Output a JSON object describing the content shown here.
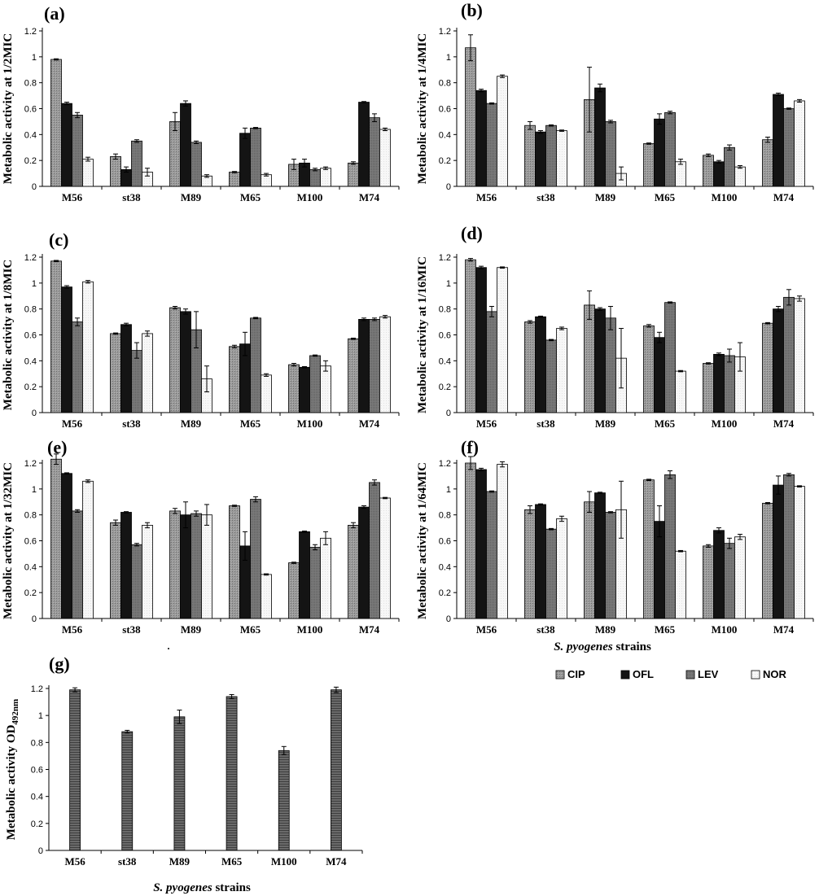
{
  "colors": {
    "CIP": "#8e8e8e",
    "OFL": "#141414",
    "LEV": "#7a7a7a",
    "NOR": "#f7f7f7",
    "single": "#6a6a6a"
  },
  "legend": [
    "CIP",
    "OFL",
    "LEV",
    "NOR"
  ],
  "xaxis_label": {
    "italic": "S. pyogenes",
    "plain": " strains"
  },
  "chart_data": [
    {
      "type": "bar",
      "panel": "(a)",
      "ylabel": "Metabolic activity at 1/2MIC",
      "categories": [
        "M56",
        "st38",
        "M89",
        "M65",
        "M100",
        "M74"
      ],
      "ylim": [
        0,
        1.2
      ],
      "yticks": [
        "0",
        "0.2",
        "0.4",
        "0.6",
        "0.8",
        "1",
        "1.2"
      ],
      "series": [
        {
          "name": "CIP",
          "values": [
            0.98,
            0.23,
            0.5,
            0.11,
            0.17,
            0.18
          ],
          "errors": [
            0.005,
            0.02,
            0.07,
            0.005,
            0.04,
            0.01
          ]
        },
        {
          "name": "OFL",
          "values": [
            0.64,
            0.13,
            0.64,
            0.41,
            0.18,
            0.65
          ],
          "errors": [
            0.01,
            0.02,
            0.02,
            0.04,
            0.03,
            0.005
          ]
        },
        {
          "name": "LEV",
          "values": [
            0.55,
            0.35,
            0.34,
            0.45,
            0.13,
            0.53
          ],
          "errors": [
            0.02,
            0.01,
            0.01,
            0.005,
            0.01,
            0.03
          ]
        },
        {
          "name": "NOR",
          "values": [
            0.21,
            0.11,
            0.08,
            0.09,
            0.14,
            0.44
          ],
          "errors": [
            0.015,
            0.03,
            0.01,
            0.01,
            0.01,
            0.01
          ]
        }
      ]
    },
    {
      "type": "bar",
      "panel": "(b)",
      "ylabel": "Metabolic activity at 1/4MIC",
      "categories": [
        "M56",
        "st38",
        "M89",
        "M65",
        "M100",
        "M74"
      ],
      "ylim": [
        0,
        1.2
      ],
      "yticks": [
        "0",
        "0.2",
        "0.4",
        "0.6",
        "0.8",
        "1",
        "1.2"
      ],
      "series": [
        {
          "name": "CIP",
          "values": [
            1.07,
            0.47,
            0.67,
            0.33,
            0.24,
            0.36
          ],
          "errors": [
            0.1,
            0.03,
            0.25,
            0.005,
            0.01,
            0.02
          ]
        },
        {
          "name": "OFL",
          "values": [
            0.74,
            0.42,
            0.76,
            0.52,
            0.19,
            0.71
          ],
          "errors": [
            0.01,
            0.01,
            0.03,
            0.04,
            0.01,
            0.01
          ]
        },
        {
          "name": "LEV",
          "values": [
            0.64,
            0.47,
            0.5,
            0.57,
            0.3,
            0.6
          ],
          "errors": [
            0.005,
            0.005,
            0.01,
            0.01,
            0.02,
            0.005
          ]
        },
        {
          "name": "NOR",
          "values": [
            0.85,
            0.43,
            0.1,
            0.19,
            0.15,
            0.66
          ],
          "errors": [
            0.01,
            0.005,
            0.05,
            0.02,
            0.01,
            0.01
          ]
        }
      ]
    },
    {
      "type": "bar",
      "panel": "(c)",
      "ylabel": "Metabolic activity at 1/8MIC",
      "categories": [
        "M56",
        "st38",
        "M89",
        "M65",
        "M100",
        "M74"
      ],
      "ylim": [
        0,
        1.2
      ],
      "yticks": [
        "0",
        "0.2",
        "0.4",
        "0.6",
        "0.8",
        "1",
        "1.2"
      ],
      "series": [
        {
          "name": "CIP",
          "values": [
            1.17,
            0.61,
            0.81,
            0.51,
            0.37,
            0.57
          ],
          "errors": [
            0.005,
            0.005,
            0.01,
            0.01,
            0.01,
            0.005
          ]
        },
        {
          "name": "OFL",
          "values": [
            0.97,
            0.68,
            0.78,
            0.53,
            0.35,
            0.72
          ],
          "errors": [
            0.01,
            0.01,
            0.02,
            0.09,
            0.005,
            0.01
          ]
        },
        {
          "name": "LEV",
          "values": [
            0.7,
            0.48,
            0.64,
            0.73,
            0.44,
            0.72
          ],
          "errors": [
            0.03,
            0.06,
            0.14,
            0.005,
            0.005,
            0.01
          ]
        },
        {
          "name": "NOR",
          "values": [
            1.01,
            0.61,
            0.26,
            0.29,
            0.36,
            0.74
          ],
          "errors": [
            0.01,
            0.02,
            0.1,
            0.01,
            0.04,
            0.01
          ]
        }
      ]
    },
    {
      "type": "bar",
      "panel": "(d)",
      "ylabel": "Metabolic activity at 1/16MIC",
      "categories": [
        "M56",
        "st38",
        "M89",
        "M65",
        "M100",
        "M74"
      ],
      "ylim": [
        0,
        1.2
      ],
      "yticks": [
        "0",
        "0.2",
        "0.4",
        "0.6",
        "0.8",
        "1",
        "1.2"
      ],
      "series": [
        {
          "name": "CIP",
          "values": [
            1.18,
            0.7,
            0.83,
            0.67,
            0.38,
            0.69
          ],
          "errors": [
            0.01,
            0.01,
            0.11,
            0.01,
            0.005,
            0.005
          ]
        },
        {
          "name": "OFL",
          "values": [
            1.12,
            0.74,
            0.8,
            0.58,
            0.45,
            0.8
          ],
          "errors": [
            0.01,
            0.005,
            0.01,
            0.04,
            0.01,
            0.02
          ]
        },
        {
          "name": "LEV",
          "values": [
            0.78,
            0.56,
            0.73,
            0.85,
            0.44,
            0.89
          ],
          "errors": [
            0.04,
            0.005,
            0.09,
            0.005,
            0.05,
            0.06
          ]
        },
        {
          "name": "NOR",
          "values": [
            1.12,
            0.65,
            0.42,
            0.32,
            0.43,
            0.88
          ],
          "errors": [
            0.005,
            0.01,
            0.23,
            0.005,
            0.11,
            0.02
          ]
        }
      ]
    },
    {
      "type": "bar",
      "panel": "(e)",
      "ylabel": "Metabolic activity at 1/32MIC",
      "categories": [
        "M56",
        "st38",
        "M89",
        "M65",
        "M100",
        "M74"
      ],
      "ylim": [
        0,
        1.2
      ],
      "yticks": [
        "0",
        "0.2",
        "0.4",
        "0.6",
        "0.8",
        "1",
        "1.2"
      ],
      "series": [
        {
          "name": "CIP",
          "values": [
            1.23,
            0.74,
            0.83,
            0.87,
            0.43,
            0.72
          ],
          "errors": [
            0.04,
            0.02,
            0.02,
            0.005,
            0.005,
            0.02
          ]
        },
        {
          "name": "OFL",
          "values": [
            1.12,
            0.82,
            0.8,
            0.56,
            0.67,
            0.86
          ],
          "errors": [
            0.005,
            0.005,
            0.1,
            0.11,
            0.005,
            0.01
          ]
        },
        {
          "name": "LEV",
          "values": [
            0.83,
            0.57,
            0.81,
            0.92,
            0.55,
            1.05
          ],
          "errors": [
            0.01,
            0.01,
            0.02,
            0.02,
            0.02,
            0.02
          ]
        },
        {
          "name": "NOR",
          "values": [
            1.06,
            0.72,
            0.8,
            0.34,
            0.62,
            0.93
          ],
          "errors": [
            0.01,
            0.02,
            0.08,
            0.005,
            0.05,
            0.005
          ]
        }
      ]
    },
    {
      "type": "bar",
      "panel": "(f)",
      "ylabel": "Metabolic activity at 1/64MIC",
      "xlabel": "S. pyogenes strains",
      "categories": [
        "M56",
        "st38",
        "M89",
        "M65",
        "M100",
        "M74"
      ],
      "ylim": [
        0,
        1.2
      ],
      "yticks": [
        "0",
        "0.2",
        "0.4",
        "0.6",
        "0.8",
        "1",
        "1.2"
      ],
      "series": [
        {
          "name": "CIP",
          "values": [
            1.2,
            0.84,
            0.9,
            1.07,
            0.56,
            0.89
          ],
          "errors": [
            0.05,
            0.03,
            0.08,
            0.005,
            0.01,
            0.005
          ]
        },
        {
          "name": "OFL",
          "values": [
            1.15,
            0.88,
            0.97,
            0.75,
            0.68,
            1.03
          ],
          "errors": [
            0.01,
            0.005,
            0.005,
            0.12,
            0.02,
            0.07
          ]
        },
        {
          "name": "LEV",
          "values": [
            0.98,
            0.69,
            0.82,
            1.11,
            0.58,
            1.11
          ],
          "errors": [
            0.005,
            0.005,
            0.005,
            0.03,
            0.04,
            0.01
          ]
        },
        {
          "name": "NOR",
          "values": [
            1.19,
            0.77,
            0.84,
            0.52,
            0.63,
            1.02
          ],
          "errors": [
            0.02,
            0.02,
            0.22,
            0.005,
            0.02,
            0.005
          ]
        }
      ]
    },
    {
      "type": "bar",
      "panel": "(g)",
      "ylabel": "Metabolic activity OD",
      "ylabel_sub": "492nm",
      "xlabel": "S. pyogenes strains",
      "categories": [
        "M56",
        "st38",
        "M89",
        "M65",
        "M100",
        "M74"
      ],
      "ylim": [
        0,
        1.2
      ],
      "yticks": [
        "0",
        "0.2",
        "0.4",
        "0.6",
        "0.8",
        "1",
        "1.2"
      ],
      "series": [
        {
          "values": [
            1.19,
            0.88,
            0.99,
            1.14,
            0.74,
            1.19
          ],
          "errors": [
            0.015,
            0.01,
            0.05,
            0.015,
            0.03,
            0.02
          ]
        }
      ]
    }
  ]
}
